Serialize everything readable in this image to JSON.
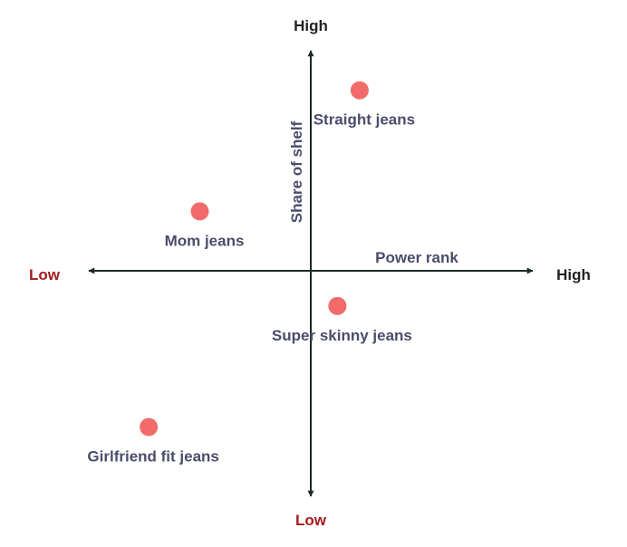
{
  "chart_data": {
    "type": "scatter",
    "title": "",
    "xlabel": "Power rank",
    "ylabel": "Share of shelf",
    "x_axis": {
      "low_label": "Low",
      "high_label": "High"
    },
    "y_axis": {
      "low_label": "Low",
      "high_label": "High"
    },
    "xlim": [
      -10,
      10
    ],
    "ylim": [
      -10,
      10
    ],
    "grid": false,
    "points": [
      {
        "label": "Straight jeans",
        "x": 2.2,
        "y": 8.2
      },
      {
        "label": "Mom jeans",
        "x": -5.0,
        "y": 2.7
      },
      {
        "label": "Super skinny jeans",
        "x": 1.2,
        "y": -1.6
      },
      {
        "label": "Girlfriend fit jeans",
        "x": -7.3,
        "y": -7.1
      }
    ]
  },
  "colors": {
    "axis": "#1c2b22",
    "point": "#f26b6b",
    "point_label": "#4a4d6a",
    "low_label": "#a21c1c",
    "high_label": "#222222",
    "axis_title": "#4a4d6a"
  }
}
